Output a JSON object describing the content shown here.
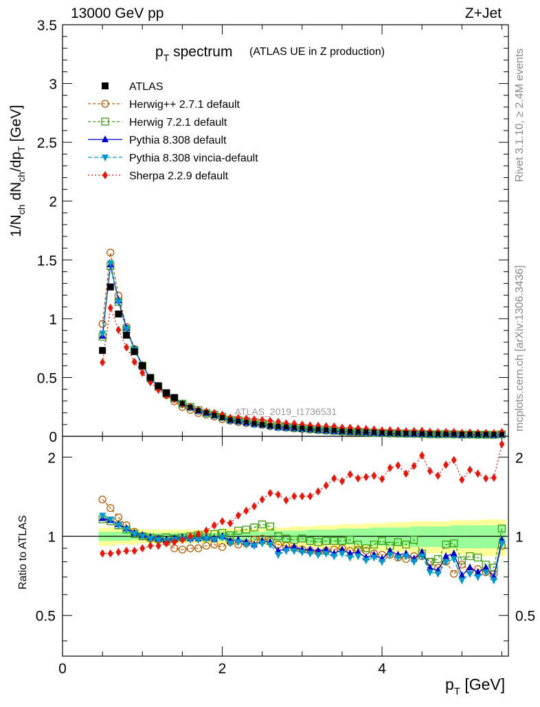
{
  "header": {
    "energy": "13000 GeV pp",
    "process": "Z+Jet",
    "side_top": "Rivet 3.1.10, ≥ 2.4M events",
    "side_bottom": "mcplots.cern.ch [arXiv:1306.3436]"
  },
  "main_plot": {
    "title_main": "p",
    "title_sub": "T",
    "title_word": " spectrum",
    "title_extra": "(ATLAS UE in Z production)",
    "ylabel": "1/N_ch dN_ch/dp_T [GeV]",
    "watermark": "ATLAS_2019_I1736531",
    "ylim": [
      0,
      3.5
    ],
    "yticks": [
      "0",
      "0.5",
      "1",
      "1.5",
      "2",
      "2.5",
      "3",
      "3.5"
    ]
  },
  "ratio_plot": {
    "ylabel": "Ratio to ATLAS",
    "left_ticks": [
      "0.5",
      "1",
      "2"
    ],
    "right_ticks": [
      "0.5",
      "1",
      "2"
    ]
  },
  "x_axis": {
    "label_main": "p",
    "label_sub": "T",
    "label_unit": "[GeV]",
    "ticks": [
      "0",
      "2",
      "4"
    ],
    "xlim": [
      0,
      5.5
    ]
  },
  "legend": {
    "entries": [
      {
        "label": "ATLAS",
        "color": "#000000",
        "marker": "square"
      },
      {
        "label": "Herwig++ 2.7.1 default",
        "color": "#b35900",
        "marker": "circle-open"
      },
      {
        "label": "Herwig 7.2.1 default",
        "color": "#3a9a13",
        "marker": "square-open"
      },
      {
        "label": "Pythia 8.308 default",
        "color": "#0000cc",
        "marker": "triangle-up"
      },
      {
        "label": "Pythia 8.308 vincia-default",
        "color": "#0099cc",
        "marker": "triangle-down"
      },
      {
        "label": "Sherpa 2.2.9 default",
        "color": "#e8160c",
        "marker": "diamond"
      }
    ]
  },
  "chart_data": {
    "type": "scatter",
    "x": [
      0.5,
      0.6,
      0.7,
      0.8,
      0.9,
      1.0,
      1.1,
      1.2,
      1.3,
      1.4,
      1.5,
      1.6,
      1.7,
      1.8,
      1.9,
      2.0,
      2.1,
      2.2,
      2.3,
      2.4,
      2.5,
      2.6,
      2.7,
      2.8,
      2.9,
      3.0,
      3.1,
      3.2,
      3.3,
      3.4,
      3.5,
      3.6,
      3.7,
      3.8,
      3.9,
      4.0,
      4.1,
      4.2,
      4.3,
      4.4,
      4.5,
      4.6,
      4.7,
      4.8,
      4.9,
      5.0,
      5.1,
      5.2,
      5.3,
      5.4,
      5.5
    ],
    "atlas": [
      0.73,
      1.27,
      1.04,
      0.86,
      0.72,
      0.6,
      0.5,
      0.43,
      0.37,
      0.33,
      0.28,
      0.25,
      0.22,
      0.2,
      0.18,
      0.16,
      0.14,
      0.13,
      0.12,
      0.11,
      0.1,
      0.09,
      0.085,
      0.08,
      0.075,
      0.07,
      0.065,
      0.06,
      0.055,
      0.05,
      0.045,
      0.042,
      0.04,
      0.037,
      0.034,
      0.03,
      0.028,
      0.026,
      0.025,
      0.024,
      0.023,
      0.022,
      0.021,
      0.02,
      0.019,
      0.018,
      0.018,
      0.017,
      0.017,
      0.016,
      0.016
    ],
    "ratio_ylim": [
      0.35,
      2.4
    ],
    "ratio_band": {
      "yellow": [
        0.92,
        0.92,
        0.93,
        0.93,
        0.93,
        0.94,
        0.94,
        0.94,
        0.94,
        0.94,
        0.94,
        0.94,
        0.94,
        0.94,
        0.94,
        0.93,
        0.93,
        0.93,
        0.93,
        0.93,
        0.93,
        0.92,
        0.92,
        0.92,
        0.91,
        0.91,
        0.91,
        0.9,
        0.9,
        0.9,
        0.89,
        0.89,
        0.89,
        0.88,
        0.88,
        0.88,
        0.87,
        0.87,
        0.87,
        0.86,
        0.86,
        0.86,
        0.86,
        0.86,
        0.85,
        0.85,
        0.85,
        0.85,
        0.84,
        0.84,
        0.84
      ],
      "green": [
        0.96,
        0.96,
        0.96,
        0.96,
        0.97,
        0.97,
        0.97,
        0.97,
        0.97,
        0.97,
        0.97,
        0.97,
        0.97,
        0.97,
        0.97,
        0.96,
        0.96,
        0.96,
        0.96,
        0.96,
        0.96,
        0.95,
        0.95,
        0.95,
        0.95,
        0.95,
        0.94,
        0.94,
        0.94,
        0.94,
        0.93,
        0.93,
        0.93,
        0.93,
        0.92,
        0.92,
        0.92,
        0.92,
        0.92,
        0.91,
        0.91,
        0.91,
        0.91,
        0.91,
        0.9,
        0.9,
        0.9,
        0.9,
        0.9,
        0.9,
        0.9
      ]
    },
    "series": [
      {
        "name": "Herwig++ 2.7.1 default",
        "color": "#b35900",
        "marker": "circle-open",
        "dash": "4,3",
        "ratio": [
          1.38,
          1.28,
          1.18,
          1.1,
          1.04,
          1.0,
          0.98,
          0.97,
          0.95,
          0.9,
          0.89,
          0.9,
          0.9,
          0.92,
          0.93,
          0.91,
          0.95,
          0.93,
          0.94,
          0.97,
          0.98,
          0.96,
          0.93,
          0.92,
          0.9,
          0.89,
          0.88,
          0.87,
          0.88,
          0.89,
          0.9,
          0.88,
          0.89,
          0.88,
          0.86,
          0.85,
          0.85,
          0.83,
          0.82,
          0.84,
          0.84,
          0.8,
          0.76,
          0.8,
          0.72,
          0.78,
          0.74,
          0.75,
          0.73,
          0.72,
          0.92
        ]
      },
      {
        "name": "Herwig 7.2.1 default",
        "color": "#3a9a13",
        "marker": "square-open",
        "dash": "4,3",
        "ratio": [
          1.16,
          1.14,
          1.1,
          1.06,
          1.02,
          1.0,
          0.99,
          0.98,
          0.99,
          0.98,
          0.99,
          1.0,
          1.01,
          0.99,
          1.02,
          1.03,
          1.01,
          1.05,
          1.06,
          1.08,
          1.11,
          1.09,
          1.0,
          0.98,
          0.97,
          0.98,
          0.96,
          0.95,
          0.96,
          0.96,
          0.96,
          0.97,
          0.93,
          0.9,
          0.93,
          0.96,
          0.92,
          0.95,
          0.93,
          0.97,
          0.86,
          0.8,
          0.82,
          0.93,
          0.94,
          0.81,
          0.84,
          0.83,
          0.78,
          0.76,
          1.07
        ]
      },
      {
        "name": "Pythia 8.308 default",
        "color": "#0000cc",
        "marker": "triangle-up",
        "dash": "",
        "ratio": [
          1.17,
          1.15,
          1.11,
          1.07,
          1.03,
          1.01,
          0.99,
          0.98,
          0.97,
          0.98,
          0.99,
          0.98,
          0.98,
          0.99,
          0.98,
          1.0,
          0.96,
          0.97,
          0.95,
          0.93,
          0.96,
          0.95,
          0.88,
          0.9,
          0.91,
          0.89,
          0.89,
          0.88,
          0.89,
          0.86,
          0.89,
          0.86,
          0.87,
          0.83,
          0.85,
          0.82,
          0.88,
          0.85,
          0.86,
          0.82,
          0.87,
          0.76,
          0.74,
          0.84,
          0.86,
          0.71,
          0.76,
          0.73,
          0.76,
          0.7,
          0.97
        ]
      },
      {
        "name": "Pythia 8.308 vincia-default",
        "color": "#0099cc",
        "marker": "triangle-down",
        "dash": "6,3",
        "ratio": [
          1.2,
          1.16,
          1.1,
          1.06,
          1.02,
          1.0,
          0.98,
          0.97,
          0.96,
          0.97,
          0.98,
          0.97,
          0.97,
          0.98,
          0.97,
          0.99,
          0.94,
          0.95,
          0.93,
          0.92,
          0.94,
          0.93,
          0.85,
          0.88,
          0.88,
          0.87,
          0.86,
          0.85,
          0.86,
          0.84,
          0.86,
          0.83,
          0.84,
          0.81,
          0.83,
          0.8,
          0.85,
          0.83,
          0.84,
          0.8,
          0.84,
          0.73,
          0.72,
          0.8,
          0.82,
          0.68,
          0.72,
          0.7,
          0.73,
          0.68,
          0.94
        ]
      },
      {
        "name": "Sherpa 2.2.9 default",
        "color": "#e8160c",
        "marker": "diamond",
        "dash": "2,3",
        "ratio": [
          0.86,
          0.86,
          0.87,
          0.88,
          0.88,
          0.9,
          0.92,
          0.92,
          0.94,
          0.95,
          0.97,
          1.0,
          1.02,
          1.05,
          1.1,
          1.14,
          1.12,
          1.2,
          1.25,
          1.3,
          1.38,
          1.46,
          1.44,
          1.37,
          1.42,
          1.42,
          1.42,
          1.48,
          1.56,
          1.66,
          1.62,
          1.72,
          1.66,
          1.68,
          1.7,
          1.65,
          1.82,
          1.86,
          1.73,
          1.85,
          2.03,
          1.77,
          1.7,
          1.87,
          1.95,
          1.64,
          1.79,
          1.73,
          1.66,
          1.67,
          2.24
        ]
      }
    ],
    "main_factors": {
      "Herwig++ 2.7.1 default": [
        1.31,
        1.23,
        1.15,
        1.08,
        1.03,
        1.0,
        0.98,
        0.97,
        0.95,
        0.9,
        0.89,
        0.9,
        0.9,
        0.92,
        0.93,
        0.91,
        0.95,
        0.93,
        0.94,
        0.97,
        0.98,
        0.96,
        0.93,
        0.92,
        0.9,
        0.89,
        0.88,
        0.87,
        0.88,
        0.89,
        0.9,
        0.88,
        0.89,
        0.88,
        0.86,
        0.85,
        0.85,
        0.83,
        0.82,
        0.84,
        0.84,
        0.8,
        0.76,
        0.8,
        0.72,
        0.78,
        0.74,
        0.75,
        0.73,
        0.72,
        0.92
      ]
    }
  }
}
